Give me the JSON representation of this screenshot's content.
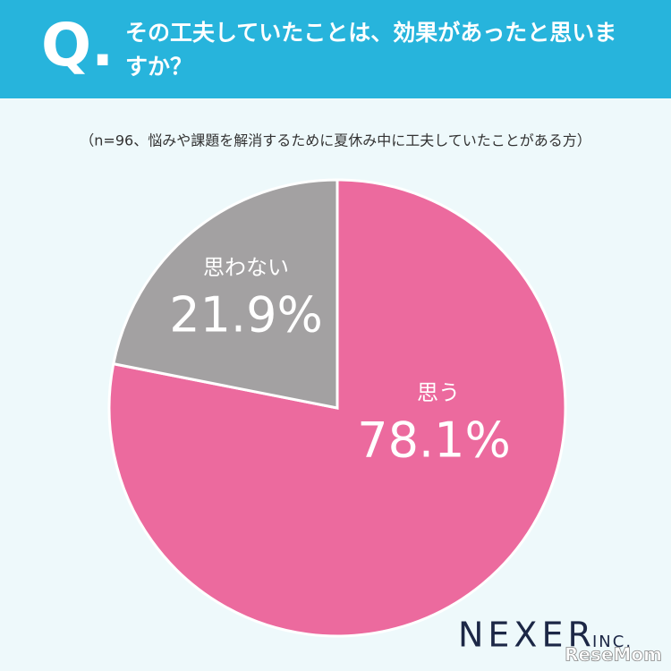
{
  "chart_data": {
    "type": "pie",
    "q_label": "Q.",
    "title": "その工夫していたことは、効果があったと思いますか？",
    "subtitle": "（n=96、悩みや課題を解消するために夏休み中に工夫していたことがある方）",
    "categories": [
      "思う",
      "思わない"
    ],
    "values": [
      78.1,
      21.9
    ],
    "value_labels": [
      "78.1%",
      "21.9%"
    ],
    "colors": [
      "#ec6a9e",
      "#a3a1a2"
    ],
    "brand": "NEXER",
    "brand_suffix": "INC.",
    "watermark": "ReseMom"
  }
}
